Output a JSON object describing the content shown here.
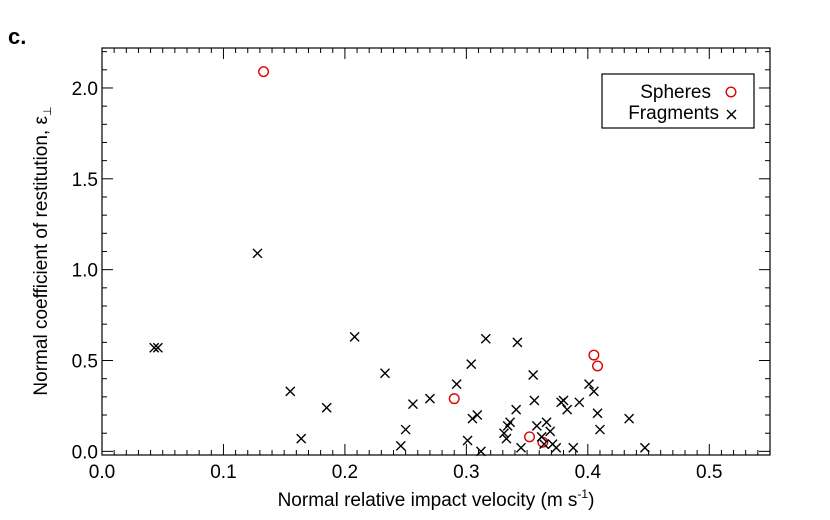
{
  "panel_label": "c.",
  "chart_data": {
    "type": "scatter",
    "xlabel": "Normal relative impact velocity (m s",
    "xlabel_sup": "-1",
    "xlabel_close": ")",
    "ylabel": "Normal coefficient of restitution, ε",
    "ylabel_sub": "⊥",
    "xlim": [
      0.0,
      0.55
    ],
    "ylim": [
      -0.02,
      2.22
    ],
    "xticks": [
      0.0,
      0.1,
      0.2,
      0.3,
      0.4,
      0.5
    ],
    "xtick_labels": [
      "0.0",
      "0.1",
      "0.2",
      "0.3",
      "0.4",
      "0.5"
    ],
    "yticks": [
      0.0,
      0.5,
      1.0,
      1.5,
      2.0
    ],
    "ytick_labels": [
      "0.0",
      "0.5",
      "1.0",
      "1.5",
      "2.0"
    ],
    "legend_position": "top-right",
    "series": [
      {
        "name": "Spheres",
        "marker": "circle",
        "color": "#e00000",
        "points": [
          [
            0.133,
            2.09
          ],
          [
            0.29,
            0.29
          ],
          [
            0.352,
            0.08
          ],
          [
            0.363,
            0.05
          ],
          [
            0.405,
            0.53
          ],
          [
            0.408,
            0.47
          ]
        ]
      },
      {
        "name": "Fragments",
        "marker": "x",
        "color": "#000000",
        "points": [
          [
            0.043,
            0.57
          ],
          [
            0.046,
            0.57
          ],
          [
            0.128,
            1.09
          ],
          [
            0.155,
            0.33
          ],
          [
            0.164,
            0.07
          ],
          [
            0.185,
            0.24
          ],
          [
            0.208,
            0.63
          ],
          [
            0.233,
            0.43
          ],
          [
            0.246,
            0.03
          ],
          [
            0.25,
            0.12
          ],
          [
            0.256,
            0.26
          ],
          [
            0.27,
            0.29
          ],
          [
            0.292,
            0.37
          ],
          [
            0.301,
            0.06
          ],
          [
            0.304,
            0.48
          ],
          [
            0.305,
            0.18
          ],
          [
            0.309,
            0.2
          ],
          [
            0.312,
            0.0
          ],
          [
            0.316,
            0.62
          ],
          [
            0.331,
            0.1
          ],
          [
            0.333,
            0.07
          ],
          [
            0.334,
            0.14
          ],
          [
            0.336,
            0.16
          ],
          [
            0.341,
            0.23
          ],
          [
            0.342,
            0.6
          ],
          [
            0.345,
            0.02
          ],
          [
            0.355,
            0.42
          ],
          [
            0.356,
            0.28
          ],
          [
            0.358,
            0.14
          ],
          [
            0.362,
            0.08
          ],
          [
            0.364,
            0.04
          ],
          [
            0.366,
            0.16
          ],
          [
            0.369,
            0.11
          ],
          [
            0.371,
            0.04
          ],
          [
            0.374,
            0.02
          ],
          [
            0.378,
            0.27
          ],
          [
            0.38,
            0.28
          ],
          [
            0.383,
            0.23
          ],
          [
            0.388,
            0.02
          ],
          [
            0.393,
            0.27
          ],
          [
            0.401,
            0.37
          ],
          [
            0.405,
            0.33
          ],
          [
            0.408,
            0.21
          ],
          [
            0.41,
            0.12
          ],
          [
            0.434,
            0.18
          ],
          [
            0.447,
            0.02
          ]
        ]
      }
    ]
  }
}
